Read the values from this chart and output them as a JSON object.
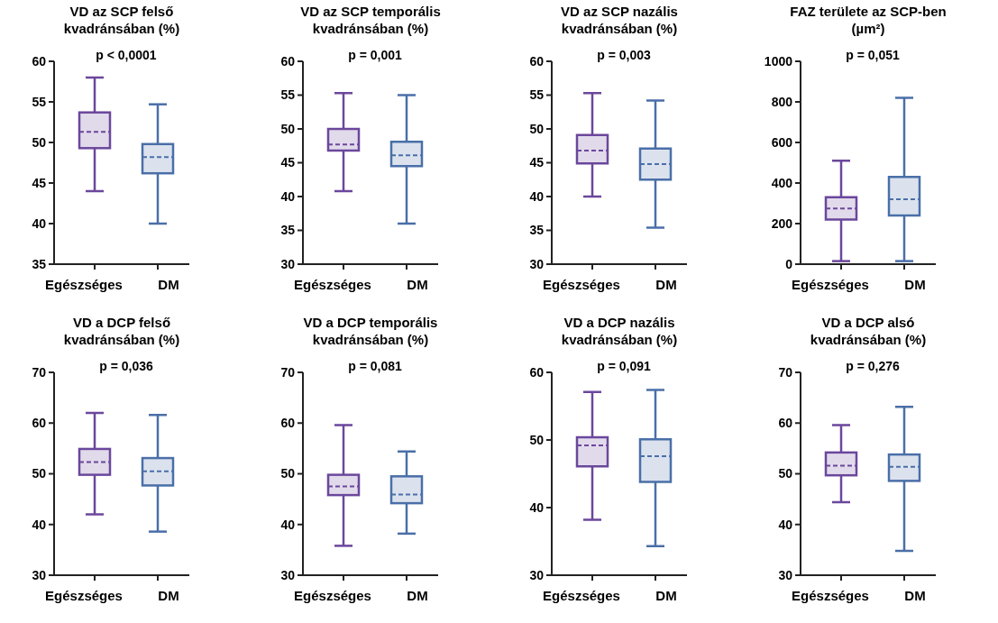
{
  "chart_data": [
    {
      "type": "box",
      "title": "VD az SCP felső kvadránsában (%)",
      "categories": [
        "Egészséges",
        "DM"
      ],
      "colors": [
        "#6b479c",
        "#4a6fa8"
      ],
      "ylim": [
        35,
        60
      ],
      "yticks": [
        35,
        40,
        45,
        50,
        55,
        60
      ],
      "annotations": [
        "p < 0,0001"
      ],
      "boxes": [
        {
          "low": 44,
          "q1": 49.3,
          "median": 51.3,
          "q3": 53.7,
          "high": 58
        },
        {
          "low": 40,
          "q1": 46.2,
          "median": 48.2,
          "q3": 49.8,
          "high": 54.7
        }
      ]
    },
    {
      "type": "box",
      "title": "VD az SCP temporális kvadránsában (%)",
      "categories": [
        "Egészséges",
        "DM"
      ],
      "colors": [
        "#6b479c",
        "#4a6fa8"
      ],
      "ylim": [
        30,
        60
      ],
      "yticks": [
        30,
        35,
        40,
        45,
        50,
        55,
        60
      ],
      "annotations": [
        "p = 0,001"
      ],
      "boxes": [
        {
          "low": 40.8,
          "q1": 46.8,
          "median": 47.7,
          "q3": 50,
          "high": 55.3
        },
        {
          "low": 36,
          "q1": 44.5,
          "median": 46.1,
          "q3": 48.1,
          "high": 55
        }
      ]
    },
    {
      "type": "box",
      "title": "VD az SCP nazális kvadránsában (%)",
      "categories": [
        "Egészséges",
        "DM"
      ],
      "colors": [
        "#6b479c",
        "#4a6fa8"
      ],
      "ylim": [
        30,
        60
      ],
      "yticks": [
        30,
        35,
        40,
        45,
        50,
        55,
        60
      ],
      "annotations": [
        "p = 0,003"
      ],
      "boxes": [
        {
          "low": 40,
          "q1": 44.9,
          "median": 46.8,
          "q3": 49.1,
          "high": 55.3
        },
        {
          "low": 35.4,
          "q1": 42.5,
          "median": 44.8,
          "q3": 47.1,
          "high": 54.2
        }
      ]
    },
    {
      "type": "box",
      "title": "FAZ területe az SCP-ben (µm²)",
      "categories": [
        "Egészséges",
        "DM"
      ],
      "colors": [
        "#6b479c",
        "#4a6fa8"
      ],
      "ylim": [
        0,
        1000
      ],
      "yticks": [
        0,
        200,
        400,
        600,
        800,
        1000
      ],
      "annotations": [
        "p = 0,051"
      ],
      "boxes": [
        {
          "low": 15,
          "q1": 220,
          "median": 275,
          "q3": 330,
          "high": 510
        },
        {
          "low": 15,
          "q1": 240,
          "median": 320,
          "q3": 430,
          "high": 820
        }
      ]
    },
    {
      "type": "box",
      "title": "VD a DCP felső kvadránsában (%)",
      "categories": [
        "Egészséges",
        "DM"
      ],
      "colors": [
        "#6b479c",
        "#4a6fa8"
      ],
      "ylim": [
        30,
        70
      ],
      "yticks": [
        30,
        40,
        50,
        60,
        70
      ],
      "annotations": [
        "p = 0,036"
      ],
      "boxes": [
        {
          "low": 42,
          "q1": 49.8,
          "median": 52.3,
          "q3": 54.9,
          "high": 62
        },
        {
          "low": 38.6,
          "q1": 47.7,
          "median": 50.5,
          "q3": 53.1,
          "high": 61.6
        }
      ]
    },
    {
      "type": "box",
      "title": "VD a DCP temporális kvadránsában (%)",
      "categories": [
        "Egészséges",
        "DM"
      ],
      "colors": [
        "#6b479c",
        "#4a6fa8"
      ],
      "ylim": [
        30,
        70
      ],
      "yticks": [
        30,
        40,
        50,
        60,
        70
      ],
      "annotations": [
        "p = 0,081"
      ],
      "boxes": [
        {
          "low": 35.8,
          "q1": 45.8,
          "median": 47.5,
          "q3": 49.8,
          "high": 59.6
        },
        {
          "low": 38.2,
          "q1": 44.2,
          "median": 45.9,
          "q3": 49.5,
          "high": 54.4
        }
      ]
    },
    {
      "type": "box",
      "title": "VD a DCP nazális kvadránsában (%)",
      "categories": [
        "Egészséges",
        "DM"
      ],
      "colors": [
        "#6b479c",
        "#4a6fa8"
      ],
      "ylim": [
        30,
        60
      ],
      "yticks": [
        30,
        40,
        50,
        60
      ],
      "annotations": [
        "p = 0,091"
      ],
      "boxes": [
        {
          "low": 38.2,
          "q1": 46.1,
          "median": 49.2,
          "q3": 50.4,
          "high": 57.1
        },
        {
          "low": 34.3,
          "q1": 43.8,
          "median": 47.6,
          "q3": 50.1,
          "high": 57.4
        }
      ]
    },
    {
      "type": "box",
      "title": "VD a DCP alsó kvadránsában (%)",
      "categories": [
        "Egészséges",
        "DM"
      ],
      "colors": [
        "#6b479c",
        "#4a6fa8"
      ],
      "ylim": [
        30,
        70
      ],
      "yticks": [
        30,
        40,
        50,
        60,
        70
      ],
      "annotations": [
        "p = 0,276"
      ],
      "boxes": [
        {
          "low": 44.4,
          "q1": 49.7,
          "median": 51.6,
          "q3": 54.2,
          "high": 59.6
        },
        {
          "low": 34.8,
          "q1": 48.6,
          "median": 51.4,
          "q3": 53.8,
          "high": 63.2
        }
      ]
    }
  ]
}
